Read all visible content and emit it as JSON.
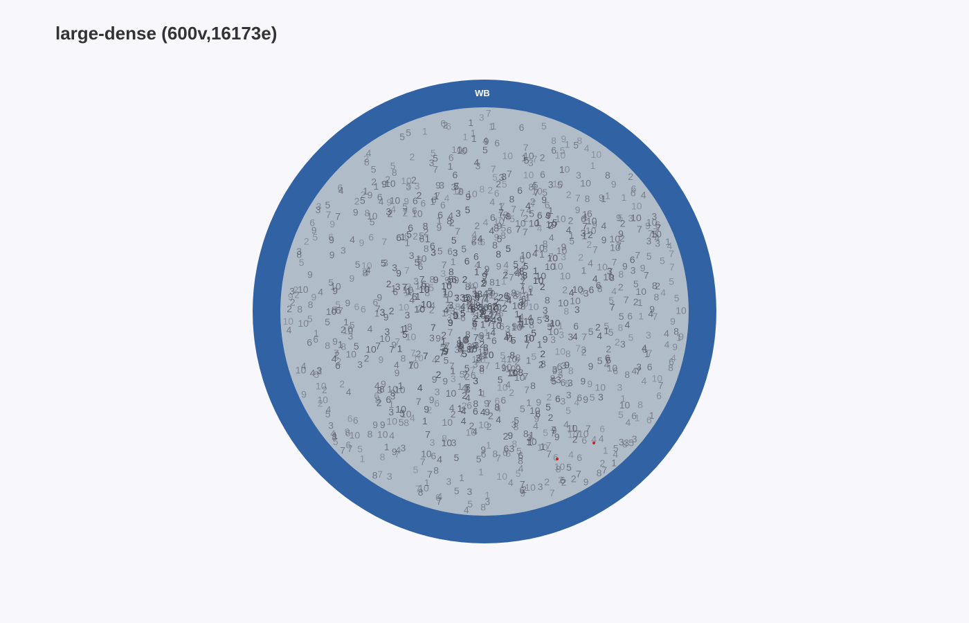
{
  "title": "large-dense (600v,16173e)",
  "ring_label": "WB",
  "colors": {
    "background": "#f8f8fc",
    "ring": "#3162a4",
    "disk": "#b1bcc9",
    "label_text": "#4a4d57",
    "ring_text": "#ffffff",
    "highlight": "#cc2222"
  },
  "edge_weight_values": [
    "1",
    "2",
    "3",
    "4",
    "5",
    "6",
    "7",
    "8",
    "9",
    "10"
  ]
}
